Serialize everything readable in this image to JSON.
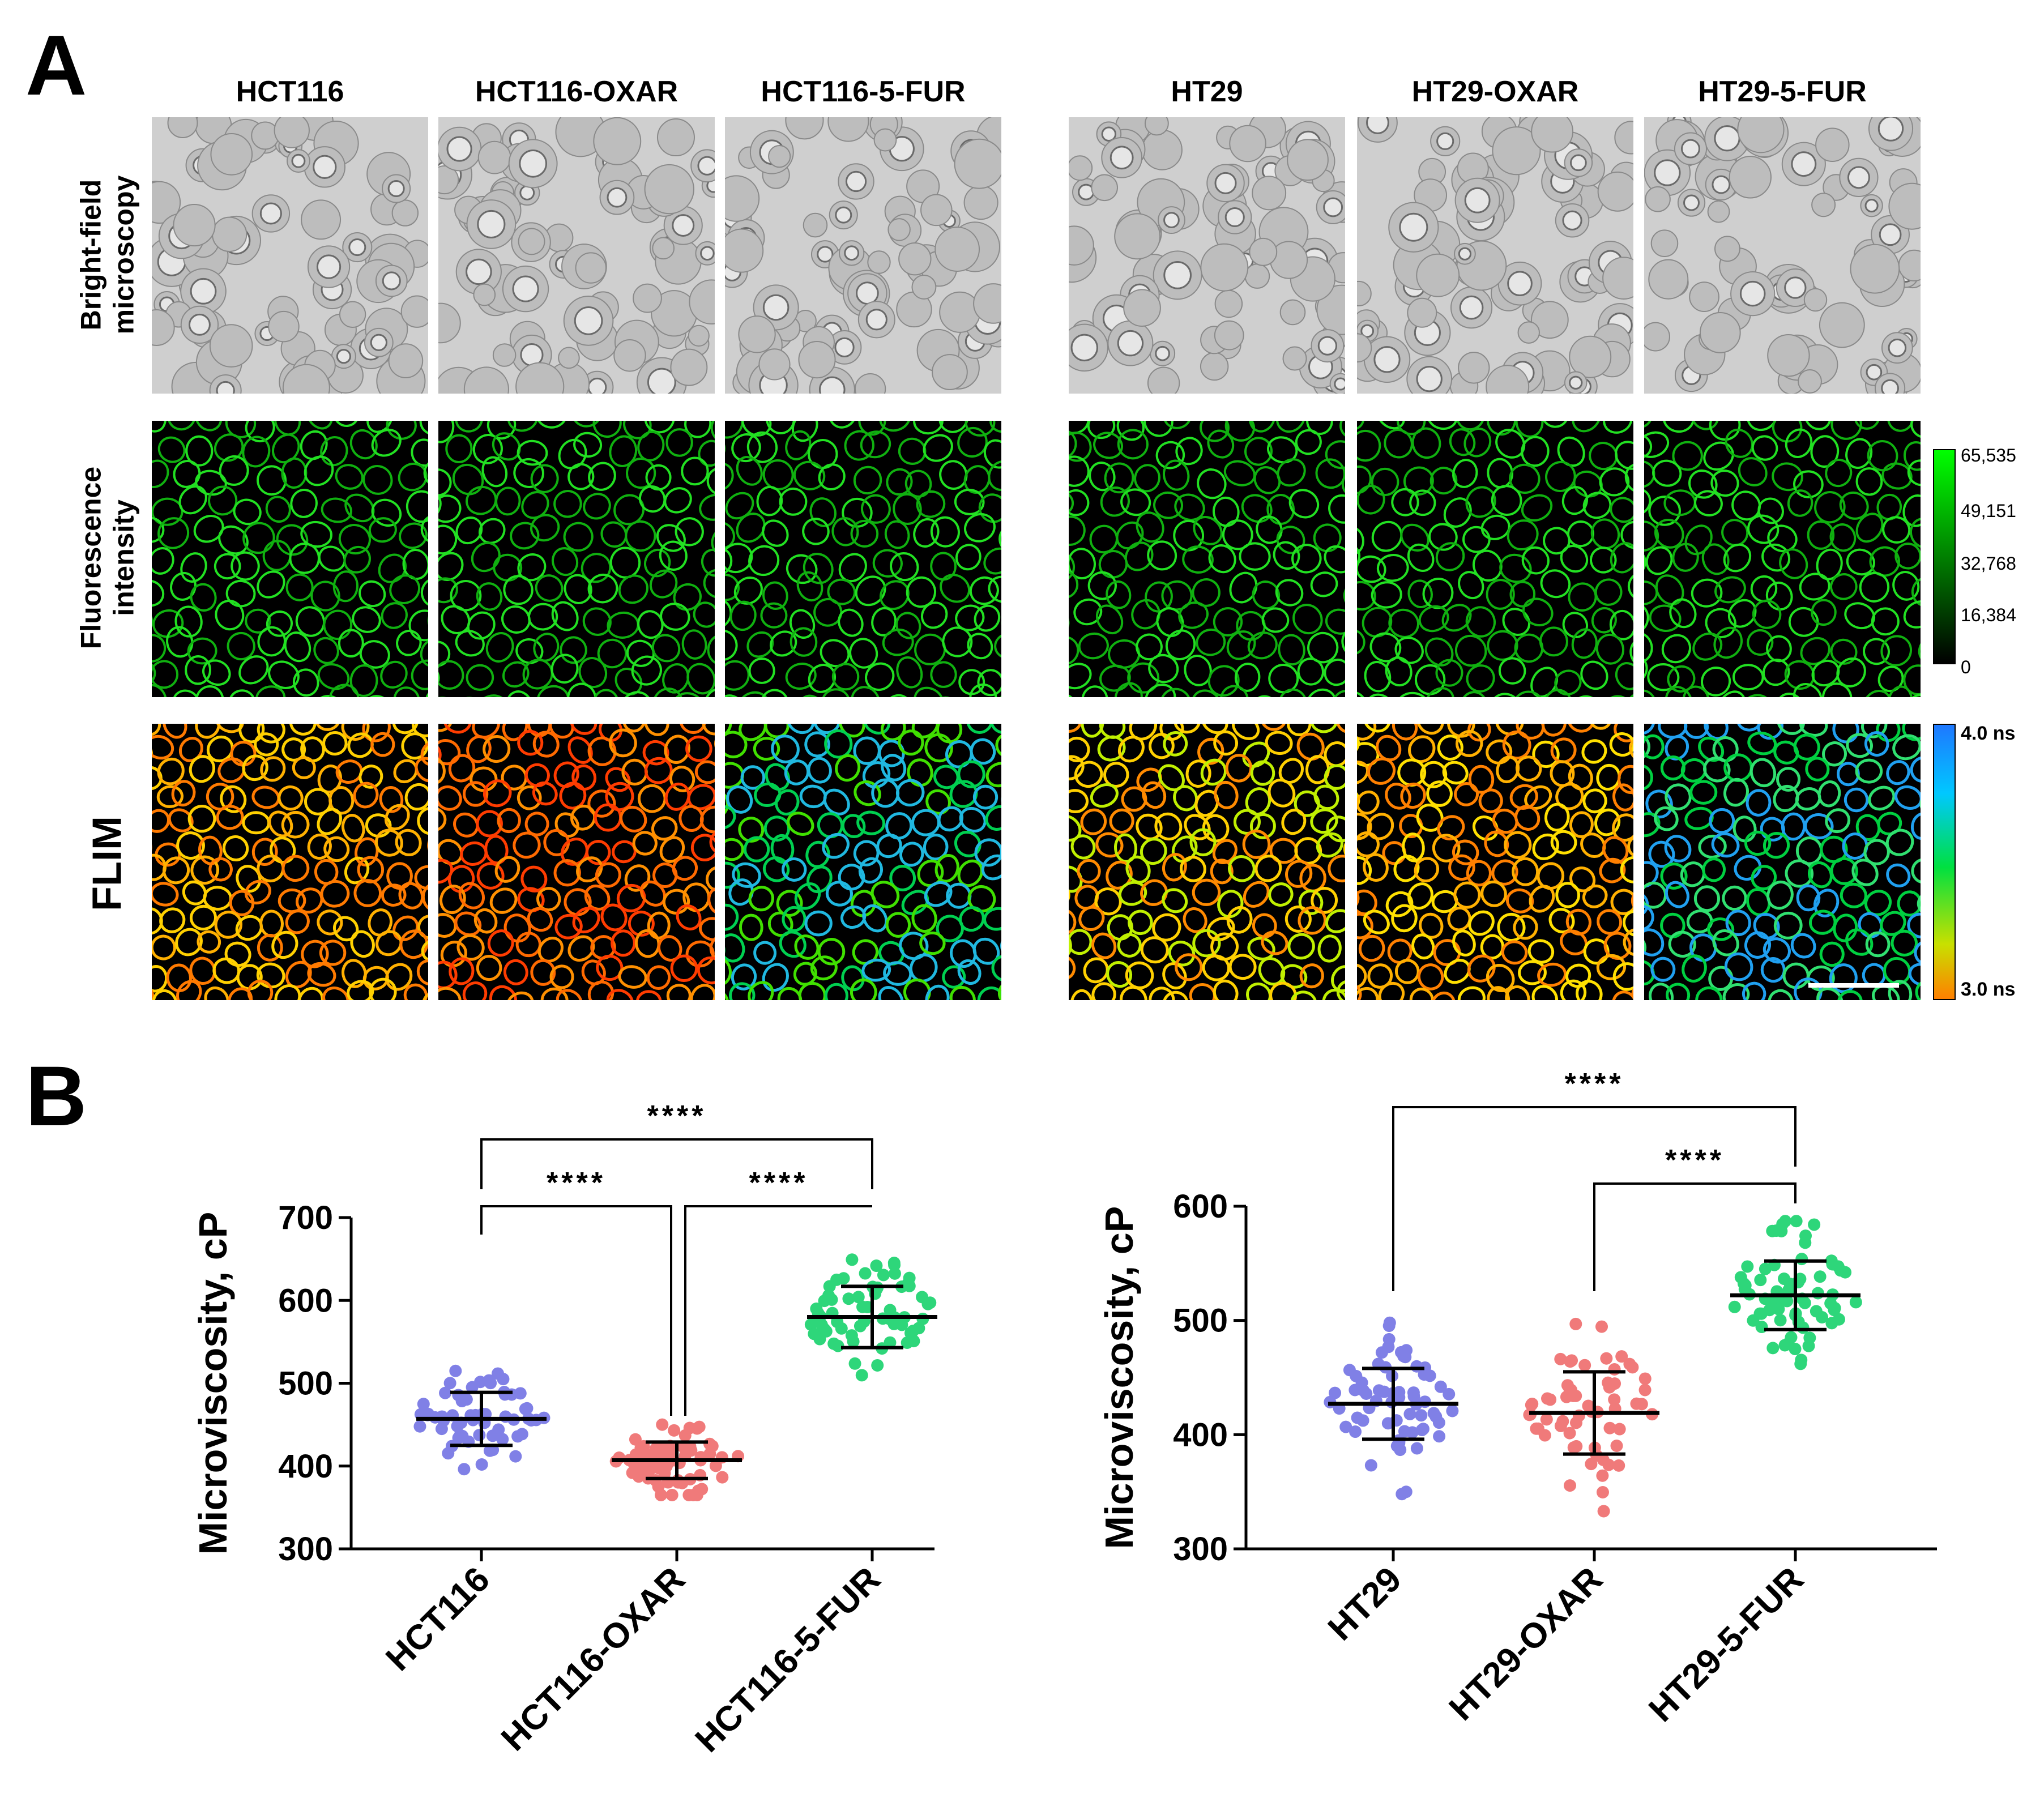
{
  "panel_a": {
    "letter": "A",
    "column_titles": [
      "HCT116",
      "HCT116-OXAR",
      "HCT116-5-FUR",
      "HT29",
      "HT29-OXAR",
      "HT29-5-FUR"
    ],
    "row_titles": {
      "bright_field": [
        "Bright-field",
        "microscopy"
      ],
      "fluorescence": [
        "Fluorescence",
        "intensity"
      ],
      "flim": "FLIM"
    },
    "intensity_colorbar": {
      "ticks": [
        "65,535",
        "49,151",
        "32,768",
        "16,384",
        "0"
      ],
      "colors": [
        "#00ff00",
        "#000000"
      ]
    },
    "flim_colorbar": {
      "top": "4.0 ns",
      "bottom": "3.0 ns",
      "colors": [
        "#1e78ff",
        "#00c8ff",
        "#00e040",
        "#c8e000",
        "#ff8000"
      ]
    }
  },
  "panel_b": {
    "letter": "B"
  },
  "chart_data": [
    {
      "type": "scatter",
      "ylabel": "Microviscosity, cP",
      "ylim": [
        300,
        700
      ],
      "yticks": [
        300,
        400,
        500,
        600,
        700
      ],
      "categories": [
        "HCT116",
        "HCT116-OXAR",
        "HCT116-5-FUR"
      ],
      "series": [
        {
          "category": "HCT116",
          "color": "#8080e6",
          "mean": 457,
          "sd": 32,
          "min": 370,
          "max": 545,
          "n": 60
        },
        {
          "category": "HCT116-OXAR",
          "color": "#f07a7a",
          "mean": 407,
          "sd": 22,
          "min": 365,
          "max": 450,
          "n": 75
        },
        {
          "category": "HCT116-5-FUR",
          "color": "#2ed67a",
          "mean": 580,
          "sd": 37,
          "min": 498,
          "max": 665,
          "n": 65
        }
      ],
      "significance": [
        {
          "from": 0,
          "to": 2,
          "label": "****"
        },
        {
          "from": 0,
          "to": 1,
          "label": "****"
        },
        {
          "from": 1,
          "to": 2,
          "label": "****"
        }
      ]
    },
    {
      "type": "scatter",
      "ylabel": "Microviscosity, cP",
      "ylim": [
        300,
        600
      ],
      "yticks": [
        300,
        400,
        500,
        600
      ],
      "categories": [
        "HT29",
        "HT29-OXAR",
        "HT29-5-FUR"
      ],
      "series": [
        {
          "category": "HT29",
          "color": "#8080e6",
          "mean": 427,
          "sd": 31,
          "min": 330,
          "max": 498,
          "n": 65
        },
        {
          "category": "HT29-OXAR",
          "color": "#f07a7a",
          "mean": 419,
          "sd": 36,
          "min": 333,
          "max": 500,
          "n": 60
        },
        {
          "category": "HT29-5-FUR",
          "color": "#2ed67a",
          "mean": 522,
          "sd": 30,
          "min": 462,
          "max": 587,
          "n": 70
        }
      ],
      "significance": [
        {
          "from": 0,
          "to": 2,
          "label": "****"
        },
        {
          "from": 1,
          "to": 2,
          "label": "****"
        }
      ]
    }
  ]
}
